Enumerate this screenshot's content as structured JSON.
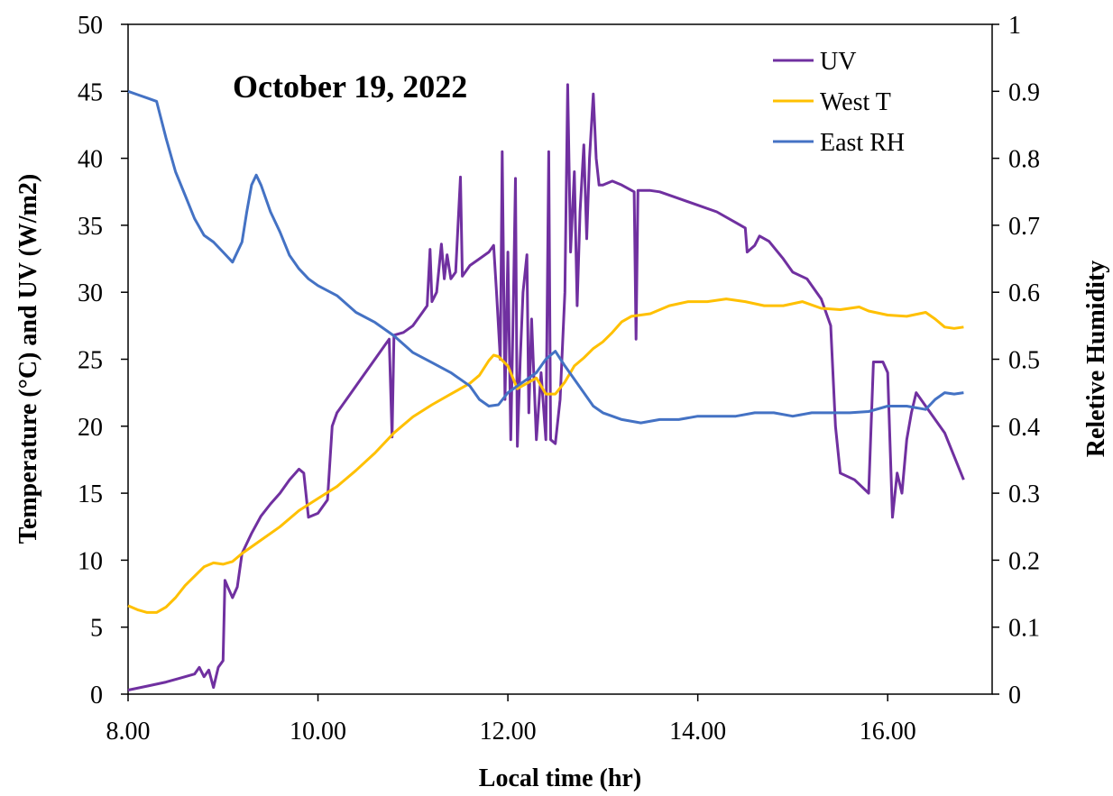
{
  "chart_data": {
    "type": "line",
    "title": "October 19, 2022",
    "xlabel": "Local time (hr)",
    "ylabel": "Temperature (°C) and UV (W/m2)",
    "y2label": "Reletive Humidity",
    "xlim": [
      8,
      17.1
    ],
    "ylim": [
      0,
      50
    ],
    "y2lim": [
      0,
      1
    ],
    "grid": false,
    "legend_position": "top-right",
    "x_ticks": [
      8,
      10,
      12,
      14,
      16
    ],
    "x_tick_labels": [
      "8.00",
      "10.00",
      "12.00",
      "14.00",
      "16.00"
    ],
    "y_ticks": [
      0,
      5,
      10,
      15,
      20,
      25,
      30,
      35,
      40,
      45,
      50
    ],
    "y_tick_labels": [
      "0",
      "5",
      "10",
      "15",
      "20",
      "25",
      "30",
      "35",
      "40",
      "45",
      "50"
    ],
    "y2_ticks": [
      0,
      0.1,
      0.2,
      0.3,
      0.4,
      0.5,
      0.6,
      0.7,
      0.8,
      0.9,
      1
    ],
    "y2_tick_labels": [
      "0",
      "0.1",
      "0.2",
      "0.3",
      "0.4",
      "0.5",
      "0.6",
      "0.7",
      "0.8",
      "0.9",
      "1"
    ],
    "series": [
      {
        "name": "UV",
        "axis": "left",
        "color": "#7030A0",
        "points": [
          [
            8.0,
            0.3
          ],
          [
            8.2,
            0.6
          ],
          [
            8.4,
            0.9
          ],
          [
            8.55,
            1.2
          ],
          [
            8.7,
            1.5
          ],
          [
            8.75,
            2.0
          ],
          [
            8.8,
            1.3
          ],
          [
            8.85,
            1.8
          ],
          [
            8.9,
            0.5
          ],
          [
            8.95,
            2.0
          ],
          [
            9.0,
            2.5
          ],
          [
            9.02,
            8.5
          ],
          [
            9.05,
            8.0
          ],
          [
            9.1,
            7.2
          ],
          [
            9.15,
            8.0
          ],
          [
            9.2,
            10.5
          ],
          [
            9.3,
            12.0
          ],
          [
            9.4,
            13.3
          ],
          [
            9.5,
            14.2
          ],
          [
            9.6,
            15.0
          ],
          [
            9.7,
            16.0
          ],
          [
            9.8,
            16.8
          ],
          [
            9.85,
            16.5
          ],
          [
            9.9,
            13.2
          ],
          [
            10.0,
            13.5
          ],
          [
            10.1,
            14.5
          ],
          [
            10.15,
            20.0
          ],
          [
            10.2,
            21.0
          ],
          [
            10.3,
            22.0
          ],
          [
            10.45,
            23.5
          ],
          [
            10.6,
            25.0
          ],
          [
            10.7,
            26.0
          ],
          [
            10.75,
            26.5
          ],
          [
            10.78,
            19.2
          ],
          [
            10.8,
            26.8
          ],
          [
            10.9,
            27.0
          ],
          [
            11.0,
            27.5
          ],
          [
            11.1,
            28.5
          ],
          [
            11.15,
            29.0
          ],
          [
            11.18,
            33.2
          ],
          [
            11.2,
            29.3
          ],
          [
            11.25,
            30.0
          ],
          [
            11.3,
            33.6
          ],
          [
            11.33,
            31.0
          ],
          [
            11.36,
            32.8
          ],
          [
            11.4,
            31.0
          ],
          [
            11.45,
            31.5
          ],
          [
            11.5,
            38.6
          ],
          [
            11.52,
            31.2
          ],
          [
            11.6,
            32.0
          ],
          [
            11.7,
            32.5
          ],
          [
            11.8,
            33.0
          ],
          [
            11.85,
            33.5
          ],
          [
            11.88,
            30.0
          ],
          [
            11.92,
            25.0
          ],
          [
            11.94,
            40.5
          ],
          [
            11.97,
            22.0
          ],
          [
            12.0,
            33.0
          ],
          [
            12.03,
            19.0
          ],
          [
            12.06,
            30.0
          ],
          [
            12.08,
            38.5
          ],
          [
            12.1,
            18.5
          ],
          [
            12.13,
            25.0
          ],
          [
            12.16,
            30.0
          ],
          [
            12.2,
            32.8
          ],
          [
            12.22,
            21.0
          ],
          [
            12.25,
            28.0
          ],
          [
            12.3,
            19.0
          ],
          [
            12.35,
            24.0
          ],
          [
            12.4,
            19.0
          ],
          [
            12.43,
            40.5
          ],
          [
            12.45,
            19.0
          ],
          [
            12.5,
            18.7
          ],
          [
            12.55,
            22.0
          ],
          [
            12.6,
            30.0
          ],
          [
            12.63,
            45.5
          ],
          [
            12.66,
            33.0
          ],
          [
            12.7,
            39.0
          ],
          [
            12.73,
            29.0
          ],
          [
            12.76,
            36.0
          ],
          [
            12.8,
            41.0
          ],
          [
            12.83,
            34.0
          ],
          [
            12.86,
            40.0
          ],
          [
            12.9,
            44.8
          ],
          [
            12.93,
            40.0
          ],
          [
            12.96,
            38.0
          ],
          [
            13.0,
            38.0
          ],
          [
            13.1,
            38.3
          ],
          [
            13.2,
            38.0
          ],
          [
            13.33,
            37.5
          ],
          [
            13.35,
            26.5
          ],
          [
            13.37,
            37.6
          ],
          [
            13.5,
            37.6
          ],
          [
            13.6,
            37.5
          ],
          [
            13.8,
            37.0
          ],
          [
            14.0,
            36.5
          ],
          [
            14.2,
            36.0
          ],
          [
            14.4,
            35.2
          ],
          [
            14.5,
            34.8
          ],
          [
            14.52,
            33.0
          ],
          [
            14.6,
            33.5
          ],
          [
            14.65,
            34.2
          ],
          [
            14.75,
            33.8
          ],
          [
            14.9,
            32.5
          ],
          [
            15.0,
            31.5
          ],
          [
            15.15,
            31.0
          ],
          [
            15.3,
            29.5
          ],
          [
            15.4,
            27.5
          ],
          [
            15.45,
            20.0
          ],
          [
            15.5,
            16.5
          ],
          [
            15.65,
            16.0
          ],
          [
            15.8,
            15.0
          ],
          [
            15.85,
            24.8
          ],
          [
            15.95,
            24.8
          ],
          [
            16.0,
            24.0
          ],
          [
            16.05,
            13.2
          ],
          [
            16.1,
            16.5
          ],
          [
            16.15,
            15.0
          ],
          [
            16.2,
            19.0
          ],
          [
            16.25,
            21.0
          ],
          [
            16.3,
            22.5
          ],
          [
            16.4,
            21.5
          ],
          [
            16.6,
            19.5
          ],
          [
            16.8,
            16.0
          ]
        ]
      },
      {
        "name": "West T",
        "axis": "left",
        "color": "#FFC000",
        "points": [
          [
            8.0,
            6.6
          ],
          [
            8.1,
            6.3
          ],
          [
            8.2,
            6.1
          ],
          [
            8.3,
            6.1
          ],
          [
            8.4,
            6.5
          ],
          [
            8.5,
            7.2
          ],
          [
            8.6,
            8.1
          ],
          [
            8.7,
            8.8
          ],
          [
            8.8,
            9.5
          ],
          [
            8.9,
            9.8
          ],
          [
            9.0,
            9.7
          ],
          [
            9.1,
            9.9
          ],
          [
            9.2,
            10.5
          ],
          [
            9.4,
            11.5
          ],
          [
            9.6,
            12.5
          ],
          [
            9.8,
            13.7
          ],
          [
            10.0,
            14.6
          ],
          [
            10.2,
            15.5
          ],
          [
            10.4,
            16.7
          ],
          [
            10.6,
            18.0
          ],
          [
            10.8,
            19.5
          ],
          [
            11.0,
            20.7
          ],
          [
            11.2,
            21.6
          ],
          [
            11.4,
            22.4
          ],
          [
            11.6,
            23.2
          ],
          [
            11.7,
            23.8
          ],
          [
            11.8,
            24.9
          ],
          [
            11.85,
            25.3
          ],
          [
            11.9,
            25.2
          ],
          [
            12.0,
            24.5
          ],
          [
            12.1,
            22.8
          ],
          [
            12.2,
            23.2
          ],
          [
            12.3,
            23.6
          ],
          [
            12.4,
            22.4
          ],
          [
            12.5,
            22.4
          ],
          [
            12.6,
            23.3
          ],
          [
            12.7,
            24.5
          ],
          [
            12.8,
            25.1
          ],
          [
            12.9,
            25.8
          ],
          [
            13.0,
            26.3
          ],
          [
            13.1,
            27.0
          ],
          [
            13.2,
            27.8
          ],
          [
            13.3,
            28.2
          ],
          [
            13.5,
            28.4
          ],
          [
            13.7,
            29.0
          ],
          [
            13.9,
            29.3
          ],
          [
            14.1,
            29.3
          ],
          [
            14.3,
            29.5
          ],
          [
            14.5,
            29.3
          ],
          [
            14.7,
            29.0
          ],
          [
            14.9,
            29.0
          ],
          [
            15.1,
            29.3
          ],
          [
            15.3,
            28.8
          ],
          [
            15.5,
            28.7
          ],
          [
            15.7,
            28.9
          ],
          [
            15.8,
            28.6
          ],
          [
            16.0,
            28.3
          ],
          [
            16.2,
            28.2
          ],
          [
            16.4,
            28.5
          ],
          [
            16.5,
            28.0
          ],
          [
            16.6,
            27.4
          ],
          [
            16.7,
            27.3
          ],
          [
            16.8,
            27.4
          ]
        ]
      },
      {
        "name": "East RH",
        "axis": "right",
        "color": "#4472C4",
        "points": [
          [
            8.0,
            0.9
          ],
          [
            8.1,
            0.895
          ],
          [
            8.2,
            0.89
          ],
          [
            8.3,
            0.885
          ],
          [
            8.4,
            0.83
          ],
          [
            8.5,
            0.78
          ],
          [
            8.6,
            0.745
          ],
          [
            8.7,
            0.71
          ],
          [
            8.8,
            0.685
          ],
          [
            8.9,
            0.675
          ],
          [
            9.0,
            0.66
          ],
          [
            9.1,
            0.645
          ],
          [
            9.2,
            0.675
          ],
          [
            9.25,
            0.72
          ],
          [
            9.3,
            0.76
          ],
          [
            9.35,
            0.775
          ],
          [
            9.4,
            0.76
          ],
          [
            9.5,
            0.72
          ],
          [
            9.6,
            0.69
          ],
          [
            9.7,
            0.655
          ],
          [
            9.8,
            0.635
          ],
          [
            9.9,
            0.62
          ],
          [
            10.0,
            0.61
          ],
          [
            10.2,
            0.595
          ],
          [
            10.4,
            0.57
          ],
          [
            10.6,
            0.555
          ],
          [
            10.8,
            0.535
          ],
          [
            11.0,
            0.51
          ],
          [
            11.2,
            0.495
          ],
          [
            11.4,
            0.48
          ],
          [
            11.6,
            0.46
          ],
          [
            11.7,
            0.44
          ],
          [
            11.8,
            0.43
          ],
          [
            11.9,
            0.432
          ],
          [
            12.0,
            0.45
          ],
          [
            12.1,
            0.46
          ],
          [
            12.2,
            0.47
          ],
          [
            12.3,
            0.48
          ],
          [
            12.4,
            0.5
          ],
          [
            12.5,
            0.512
          ],
          [
            12.6,
            0.49
          ],
          [
            12.7,
            0.47
          ],
          [
            12.8,
            0.45
          ],
          [
            12.9,
            0.43
          ],
          [
            13.0,
            0.42
          ],
          [
            13.2,
            0.41
          ],
          [
            13.4,
            0.405
          ],
          [
            13.6,
            0.41
          ],
          [
            13.8,
            0.41
          ],
          [
            14.0,
            0.415
          ],
          [
            14.2,
            0.415
          ],
          [
            14.4,
            0.415
          ],
          [
            14.6,
            0.42
          ],
          [
            14.8,
            0.42
          ],
          [
            15.0,
            0.415
          ],
          [
            15.2,
            0.42
          ],
          [
            15.4,
            0.42
          ],
          [
            15.6,
            0.42
          ],
          [
            15.8,
            0.422
          ],
          [
            16.0,
            0.43
          ],
          [
            16.2,
            0.43
          ],
          [
            16.4,
            0.425
          ],
          [
            16.5,
            0.44
          ],
          [
            16.6,
            0.45
          ],
          [
            16.7,
            0.448
          ],
          [
            16.8,
            0.45
          ]
        ]
      }
    ]
  }
}
